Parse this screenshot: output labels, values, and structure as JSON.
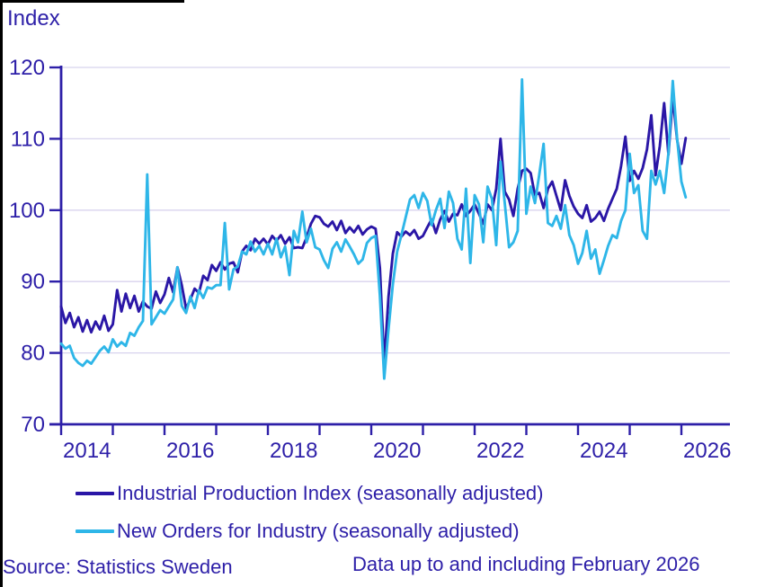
{
  "title": "Index",
  "source": "Source: Statistics Sweden",
  "footnote": "Data up to and including February 2026",
  "colors": {
    "text": "#2d1fa8",
    "axis": "#2d1fa8",
    "grid": "#d8d3ee",
    "ipi_line": "#2a16a6",
    "orders_line": "#2eb6e8",
    "background": "#ffffff",
    "border": "#000000"
  },
  "legend": {
    "items": [
      {
        "label": "Industrial Production Index (seasonally adjusted)",
        "color": "#2a16a6"
      },
      {
        "label": "New Orders for Industry (seasonally adjusted)",
        "color": "#2eb6e8"
      }
    ]
  },
  "chart_data": {
    "type": "line",
    "title": "Index",
    "xlabel": "",
    "ylabel": "Index",
    "ylim": [
      70,
      120
    ],
    "y_ticks": [
      70,
      80,
      90,
      100,
      110,
      120
    ],
    "x_tick_years": [
      2014,
      2015,
      2016,
      2017,
      2018,
      2019,
      2020,
      2021,
      2022,
      2023,
      2024,
      2025,
      2026
    ],
    "x_label_years": [
      "2014",
      "2016",
      "2018",
      "2020",
      "2022",
      "2024",
      "2026"
    ],
    "x_start": "2014-01",
    "x_end": "2026-02",
    "frequency": "monthly",
    "grid": true,
    "legend_position": "bottom",
    "series": [
      {
        "name": "Industrial Production Index (seasonally adjusted)",
        "color": "#2a16a6",
        "values": [
          86.5,
          84.2,
          85.6,
          83.6,
          85.0,
          83.0,
          84.6,
          82.9,
          84.4,
          83.3,
          85.2,
          83.1,
          84.0,
          88.8,
          85.8,
          88.3,
          86.3,
          88.0,
          85.8,
          87.2,
          86.5,
          86.2,
          88.6,
          87.0,
          88.2,
          90.5,
          88.5,
          92.0,
          89.5,
          86.2,
          87.5,
          89.0,
          88.4,
          90.8,
          90.2,
          92.3,
          91.5,
          92.7,
          91.7,
          92.5,
          92.7,
          91.3,
          94.2,
          95.0,
          94.4,
          96.0,
          95.3,
          96.0,
          95.2,
          96.4,
          95.7,
          96.5,
          95.3,
          96.2,
          94.7,
          94.8,
          94.7,
          96.2,
          98.1,
          99.2,
          99.0,
          98.1,
          97.7,
          98.4,
          97.2,
          98.5,
          96.8,
          97.6,
          96.9,
          97.8,
          96.6,
          97.3,
          97.7,
          97.4,
          91.9,
          78.5,
          87.9,
          93.9,
          96.9,
          96.3,
          97.0,
          96.5,
          97.2,
          96.0,
          96.4,
          97.6,
          98.7,
          96.8,
          98.7,
          99.9,
          98.4,
          99.5,
          99.3,
          100.8,
          99.2,
          99.9,
          100.8,
          99.5,
          98.1,
          100.8,
          100.0,
          103.0,
          110.0,
          102.6,
          101.5,
          99.2,
          103.0,
          105.5,
          105.8,
          105.2,
          102.1,
          102.4,
          100.3,
          103.0,
          104.0,
          102.0,
          100.0,
          104.2,
          102.0,
          100.5,
          99.5,
          98.9,
          100.7,
          98.4,
          98.9,
          99.8,
          98.5,
          100.2,
          101.6,
          103.0,
          106.2,
          110.3,
          104.1,
          105.5,
          104.4,
          105.9,
          108.5,
          113.3,
          104.9,
          109.0,
          115.0,
          107.8,
          115.8,
          109.9,
          106.5,
          110.1
        ]
      },
      {
        "name": "New Orders for Industry (seasonally adjusted)",
        "color": "#2eb6e8",
        "values": [
          81.3,
          80.6,
          81.0,
          79.3,
          78.6,
          78.2,
          78.9,
          78.5,
          79.4,
          80.3,
          80.9,
          80.1,
          81.9,
          80.9,
          81.5,
          81.0,
          82.8,
          82.4,
          83.6,
          84.5,
          105.0,
          84.0,
          85.0,
          86.0,
          85.5,
          86.5,
          87.5,
          92.0,
          86.6,
          85.6,
          87.9,
          86.3,
          88.8,
          87.7,
          89.2,
          89.0,
          89.5,
          89.5,
          98.2,
          88.9,
          91.7,
          92.1,
          94.2,
          93.8,
          95.6,
          94.2,
          95.0,
          93.8,
          95.3,
          93.8,
          96.0,
          93.4,
          94.9,
          90.9,
          97.1,
          95.5,
          99.8,
          95.5,
          97.4,
          94.8,
          94.5,
          93.0,
          91.9,
          94.6,
          95.5,
          94.2,
          95.9,
          94.9,
          93.8,
          92.5,
          93.1,
          95.4,
          96.1,
          96.4,
          88.0,
          76.4,
          83.3,
          89.6,
          94.2,
          96.5,
          99.0,
          101.5,
          102.1,
          100.3,
          102.4,
          101.3,
          97.9,
          100.0,
          101.6,
          97.5,
          102.6,
          101.0,
          96.0,
          94.5,
          103.0,
          92.6,
          102.1,
          100.8,
          95.5,
          103.3,
          101.6,
          95.1,
          106.8,
          101.0,
          94.8,
          95.5,
          97.1,
          118.3,
          99.5,
          103.3,
          101.0,
          105.0,
          109.3,
          98.2,
          97.8,
          99.2,
          97.4,
          100.7,
          96.5,
          95.1,
          92.5,
          94.0,
          97.1,
          93.2,
          94.5,
          91.1,
          93.0,
          95.0,
          96.5,
          96.1,
          98.5,
          100.0,
          107.9,
          102.4,
          103.5,
          97.1,
          96.0,
          105.5,
          103.6,
          105.5,
          102.4,
          108.0,
          118.1,
          110.1,
          104.0,
          101.8
        ]
      }
    ]
  }
}
